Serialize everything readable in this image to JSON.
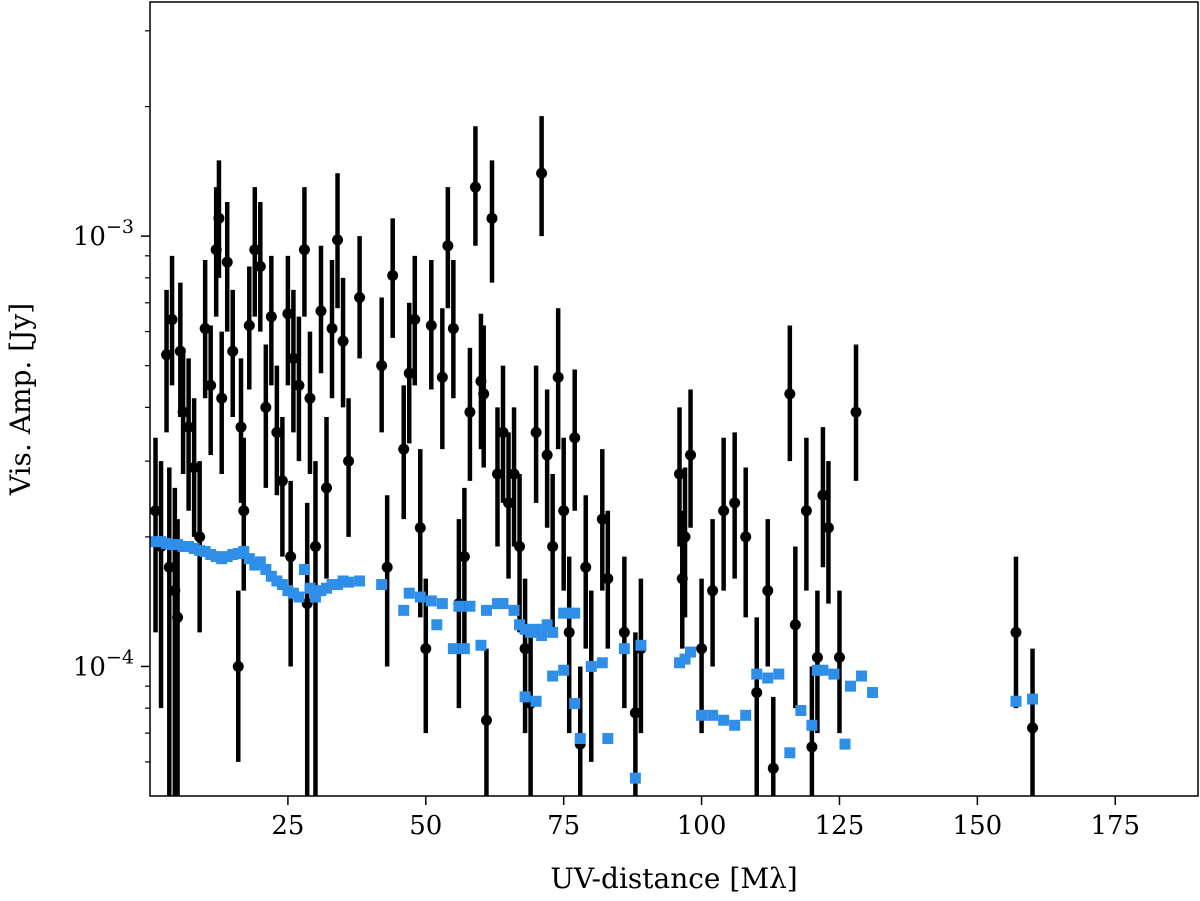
{
  "chart_data": {
    "type": "scatter",
    "title": "",
    "xlabel": "UV-distance [Mλ]",
    "ylabel": "Vis. Amp. [Jy]",
    "xlim": [
      0,
      190
    ],
    "ylim": [
      5e-05,
      0.0035
    ],
    "yscale": "log",
    "grid": false,
    "x_ticks": [
      {
        "value": 25,
        "label": "25"
      },
      {
        "value": 50,
        "label": "50"
      },
      {
        "value": 75,
        "label": "75"
      },
      {
        "value": 100,
        "label": "100"
      },
      {
        "value": 125,
        "label": "125"
      },
      {
        "value": 150,
        "label": "150"
      },
      {
        "value": 175,
        "label": "175"
      }
    ],
    "y_ticks": [
      {
        "value": 0.0001,
        "base": "10",
        "exp": "−4"
      },
      {
        "value": 0.001,
        "base": "10",
        "exp": "−3"
      }
    ],
    "y_minor_ticks": [
      6e-05,
      7e-05,
      8e-05,
      9e-05,
      0.0002,
      0.0003,
      0.0004,
      0.0005,
      0.0006,
      0.0007,
      0.0008,
      0.0009,
      0.002,
      0.003
    ],
    "series": [
      {
        "color": "#000000",
        "marker": "circle",
        "error_bars": true,
        "points": [
          [
            1.0,
            0.00023,
            0.00012,
            0.00034
          ],
          [
            2.0,
            0.00019,
            8e-05,
            0.0003
          ],
          [
            3.0,
            0.00053,
            0.00035,
            0.00075
          ],
          [
            3.5,
            0.00017,
            5e-05,
            0.00029
          ],
          [
            4.0,
            0.00064,
            0.00045,
            0.0009
          ],
          [
            4.5,
            0.00015,
            5e-05,
            0.00026
          ],
          [
            5.0,
            0.00013,
            5e-05,
            0.00022
          ],
          [
            5.5,
            0.00054,
            0.00038,
            0.00078
          ],
          [
            6.0,
            0.00039,
            0.00028,
            0.00055
          ],
          [
            7.0,
            0.00036,
            0.00023,
            0.00052
          ],
          [
            8.0,
            0.00029,
            0.0002,
            0.00042
          ],
          [
            9.0,
            0.0002,
            0.00012,
            0.0003
          ],
          [
            10.0,
            0.00061,
            0.00042,
            0.00088
          ],
          [
            11.0,
            0.00045,
            0.00031,
            0.00062
          ],
          [
            12.0,
            0.00093,
            0.00065,
            0.0013
          ],
          [
            12.5,
            0.0011,
            0.0008,
            0.0015
          ],
          [
            13.0,
            0.00042,
            0.00028,
            0.0006
          ],
          [
            14.0,
            0.00087,
            0.0006,
            0.0012
          ],
          [
            15.0,
            0.00054,
            0.00038,
            0.00075
          ],
          [
            16.0,
            0.0001,
            6e-05,
            0.00015
          ],
          [
            16.5,
            0.00036,
            0.00024,
            0.00052
          ],
          [
            17.0,
            0.00023,
            0.00015,
            0.00034
          ],
          [
            18.0,
            0.00062,
            0.00044,
            0.00085
          ],
          [
            19.0,
            0.00093,
            0.00065,
            0.0013
          ],
          [
            20.0,
            0.00085,
            0.0006,
            0.0012
          ],
          [
            21.0,
            0.0004,
            0.00026,
            0.00056
          ],
          [
            22.0,
            0.00065,
            0.00045,
            0.0009
          ],
          [
            23.0,
            0.00035,
            0.00025,
            0.0005
          ],
          [
            24.0,
            0.00027,
            0.00018,
            0.00038
          ],
          [
            25.0,
            0.00066,
            0.00045,
            0.0009
          ],
          [
            25.5,
            0.00018,
            0.0001,
            0.00027
          ],
          [
            26.0,
            0.00052,
            0.00035,
            0.00075
          ],
          [
            27.0,
            0.00045,
            0.0003,
            0.00065
          ],
          [
            28.0,
            0.00093,
            0.00065,
            0.0013
          ],
          [
            28.5,
            0.00014,
            5e-05,
            0.00024
          ],
          [
            29.0,
            0.00042,
            0.00028,
            0.0006
          ],
          [
            30.0,
            0.00019,
            5e-05,
            0.0003
          ],
          [
            31.0,
            0.00067,
            0.00048,
            0.00095
          ],
          [
            32.0,
            0.00026,
            0.00016,
            0.00038
          ],
          [
            33.0,
            0.00061,
            0.00042,
            0.00088
          ],
          [
            34.0,
            0.00098,
            0.00068,
            0.0014
          ],
          [
            35.0,
            0.00057,
            0.0004,
            0.0008
          ],
          [
            36.0,
            0.0003,
            0.0002,
            0.00042
          ],
          [
            38.0,
            0.00072,
            0.00052,
            0.001
          ],
          [
            42.0,
            0.0005,
            0.00035,
            0.00072
          ],
          [
            43.0,
            0.00017,
            0.0001,
            0.00025
          ],
          [
            44.0,
            0.00081,
            0.00058,
            0.0011
          ],
          [
            46.0,
            0.00032,
            0.00022,
            0.00045
          ],
          [
            47.0,
            0.00048,
            0.00033,
            0.0007
          ],
          [
            48.0,
            0.00064,
            0.00045,
            0.0009
          ],
          [
            49.0,
            0.00021,
            0.00013,
            0.00032
          ],
          [
            50.0,
            0.00011,
            7e-05,
            0.00016
          ],
          [
            51.0,
            0.00062,
            0.00044,
            0.00088
          ],
          [
            53.0,
            0.00047,
            0.00032,
            0.00068
          ],
          [
            54.0,
            0.00095,
            0.00068,
            0.0013
          ],
          [
            55.0,
            0.00061,
            0.00042,
            0.00088
          ],
          [
            56.0,
            0.00014,
            8e-05,
            0.00022
          ],
          [
            57.0,
            0.00018,
            0.00011,
            0.00026
          ],
          [
            58.0,
            0.00039,
            0.00027,
            0.00055
          ],
          [
            59.0,
            0.0013,
            0.00095,
            0.0018
          ],
          [
            60.0,
            0.00046,
            0.00032,
            0.00066
          ],
          [
            60.5,
            0.00043,
            0.00029,
            0.00062
          ],
          [
            61.0,
            7.5e-05,
            5e-05,
            0.00011
          ],
          [
            62.0,
            0.0011,
            0.00078,
            0.0015
          ],
          [
            63.0,
            0.00028,
            0.00019,
            0.0004
          ],
          [
            64.0,
            0.00035,
            0.00024,
            0.0005
          ],
          [
            65.0,
            0.00024,
            0.00016,
            0.00035
          ],
          [
            66.0,
            0.00028,
            0.00019,
            0.0004
          ],
          [
            67.0,
            0.00019,
            0.00012,
            0.00028
          ],
          [
            68.0,
            0.00011,
            7e-05,
            0.00016
          ],
          [
            69.0,
            8.2e-05,
            5e-05,
            0.00012
          ],
          [
            70.0,
            0.00035,
            0.00024,
            0.0005
          ],
          [
            71.0,
            0.0014,
            0.001,
            0.0019
          ],
          [
            72.0,
            0.00031,
            0.00021,
            0.00044
          ],
          [
            73.0,
            0.00019,
            0.00012,
            0.00028
          ],
          [
            74.0,
            0.00047,
            0.00032,
            0.00068
          ],
          [
            75.0,
            0.00023,
            0.00015,
            0.00034
          ],
          [
            76.0,
            0.00012,
            7e-05,
            0.00018
          ],
          [
            77.0,
            0.00034,
            0.00023,
            0.00049
          ],
          [
            78.0,
            6.6e-05,
            5e-05,
            0.0001
          ],
          [
            79.0,
            0.00017,
            0.00011,
            0.00025
          ],
          [
            80.0,
            0.0001,
            6e-05,
            0.00015
          ],
          [
            82.0,
            0.00022,
            0.00015,
            0.00032
          ],
          [
            83.0,
            0.00016,
            0.00011,
            0.00023
          ],
          [
            86.0,
            0.00012,
            8e-05,
            0.00018
          ],
          [
            88.0,
            7.8e-05,
            5e-05,
            0.00012
          ],
          [
            89.0,
            0.00011,
            7e-05,
            0.00016
          ],
          [
            96.0,
            0.00028,
            0.00019,
            0.0004
          ],
          [
            96.5,
            0.00016,
            0.00011,
            0.00023
          ],
          [
            97.0,
            0.0002,
            0.00013,
            0.00029
          ],
          [
            98.0,
            0.00031,
            0.00021,
            0.00044
          ],
          [
            100.0,
            0.00011,
            7e-05,
            0.00016
          ],
          [
            102.0,
            0.00015,
            0.0001,
            0.00022
          ],
          [
            104.0,
            0.00023,
            0.00015,
            0.00034
          ],
          [
            106.0,
            0.00024,
            0.00016,
            0.00035
          ],
          [
            108.0,
            0.0002,
            0.00013,
            0.00029
          ],
          [
            110.0,
            8.7e-05,
            5e-05,
            0.00013
          ],
          [
            112.0,
            0.00015,
            0.0001,
            0.00022
          ],
          [
            113.0,
            5.8e-05,
            5e-05,
            8.5e-05
          ],
          [
            116.0,
            0.00043,
            0.0003,
            0.00062
          ],
          [
            117.0,
            0.000125,
            8e-05,
            0.00019
          ],
          [
            119.0,
            0.00023,
            0.00015,
            0.00034
          ],
          [
            120.0,
            6.5e-05,
            5e-05,
            0.0001
          ],
          [
            121.0,
            0.000105,
            7e-05,
            0.00015
          ],
          [
            122.0,
            0.00025,
            0.00017,
            0.00036
          ],
          [
            123.0,
            0.00021,
            0.00014,
            0.0003
          ],
          [
            125.0,
            0.000105,
            7e-05,
            0.00015
          ],
          [
            128.0,
            0.00039,
            0.00027,
            0.00056
          ],
          [
            157.0,
            0.00012,
            8e-05,
            0.00018
          ],
          [
            160.0,
            7.2e-05,
            5e-05,
            0.00011
          ]
        ]
      },
      {
        "color": "#2f8fe8",
        "marker": "square",
        "error_bars": false,
        "points": [
          [
            1.0,
            0.000195
          ],
          [
            2.0,
            0.000195
          ],
          [
            3.0,
            0.000193
          ],
          [
            4.0,
            0.000192
          ],
          [
            5.0,
            0.000192
          ],
          [
            6.0,
            0.00019
          ],
          [
            7.0,
            0.00019
          ],
          [
            8.0,
            0.000188
          ],
          [
            9.0,
            0.000186
          ],
          [
            10.0,
            0.000185
          ],
          [
            11.0,
            0.000182
          ],
          [
            12.0,
            0.00018
          ],
          [
            13.0,
            0.000178
          ],
          [
            14.0,
            0.00018
          ],
          [
            15.0,
            0.000182
          ],
          [
            16.0,
            0.000183
          ],
          [
            17.0,
            0.000185
          ],
          [
            18.0,
            0.000178
          ],
          [
            19.0,
            0.000172
          ],
          [
            20.0,
            0.000175
          ],
          [
            21.0,
            0.000168
          ],
          [
            22.0,
            0.000162
          ],
          [
            23.0,
            0.000158
          ],
          [
            24.0,
            0.000155
          ],
          [
            25.0,
            0.00015
          ],
          [
            26.0,
            0.000148
          ],
          [
            27.0,
            0.000145
          ],
          [
            28.0,
            0.000168
          ],
          [
            29.0,
            0.000152
          ],
          [
            30.0,
            0.000145
          ],
          [
            31.0,
            0.00015
          ],
          [
            32.0,
            0.000152
          ],
          [
            33.0,
            0.000155
          ],
          [
            34.0,
            0.000155
          ],
          [
            35.0,
            0.000158
          ],
          [
            36.0,
            0.000157
          ],
          [
            38.0,
            0.000158
          ],
          [
            42.0,
            0.000155
          ],
          [
            46.0,
            0.000135
          ],
          [
            47.0,
            0.000148
          ],
          [
            49.0,
            0.000145
          ],
          [
            51.0,
            0.000142
          ],
          [
            52.0,
            0.000125
          ],
          [
            53.0,
            0.00014
          ],
          [
            55.0,
            0.00011
          ],
          [
            56.0,
            0.000138
          ],
          [
            57.0,
            0.00011
          ],
          [
            58.0,
            0.000138
          ],
          [
            60.0,
            0.000112
          ],
          [
            61.0,
            0.000135
          ],
          [
            63.0,
            0.00014
          ],
          [
            64.0,
            0.00014
          ],
          [
            66.0,
            0.000135
          ],
          [
            67.0,
            0.000125
          ],
          [
            68.0,
            0.000122
          ],
          [
            69.0,
            0.00012
          ],
          [
            70.0,
            0.000122
          ],
          [
            71.0,
            0.000118
          ],
          [
            72.0,
            0.000125
          ],
          [
            73.0,
            0.00012
          ],
          [
            75.0,
            0.000133
          ],
          [
            76.0,
            0.000133
          ],
          [
            77.0,
            0.000133
          ],
          [
            68.0,
            8.5e-05
          ],
          [
            70.0,
            8.3e-05
          ],
          [
            73.0,
            9.5e-05
          ],
          [
            75.0,
            9.8e-05
          ],
          [
            77.0,
            8.2e-05
          ],
          [
            78.0,
            6.8e-05
          ],
          [
            80.0,
            0.0001
          ],
          [
            82.0,
            0.000102
          ],
          [
            83.0,
            6.8e-05
          ],
          [
            86.0,
            0.00011
          ],
          [
            88.0,
            5.5e-05
          ],
          [
            89.0,
            0.000112
          ],
          [
            96.0,
            0.000102
          ],
          [
            97.0,
            0.000104
          ],
          [
            98.0,
            0.000108
          ],
          [
            100.0,
            7.7e-05
          ],
          [
            102.0,
            7.7e-05
          ],
          [
            104.0,
            7.5e-05
          ],
          [
            106.0,
            7.3e-05
          ],
          [
            108.0,
            7.7e-05
          ],
          [
            110.0,
            9.6e-05
          ],
          [
            112.0,
            9.4e-05
          ],
          [
            114.0,
            9.6e-05
          ],
          [
            116.0,
            6.3e-05
          ],
          [
            118.0,
            7.9e-05
          ],
          [
            120.0,
            7.3e-05
          ],
          [
            121.0,
            9.8e-05
          ],
          [
            122.0,
            9.8e-05
          ],
          [
            124.0,
            9.6e-05
          ],
          [
            126.0,
            6.6e-05
          ],
          [
            127.0,
            9e-05
          ],
          [
            129.0,
            9.5e-05
          ],
          [
            131.0,
            8.7e-05
          ],
          [
            157.0,
            8.3e-05
          ],
          [
            160.0,
            8.4e-05
          ]
        ]
      }
    ]
  }
}
